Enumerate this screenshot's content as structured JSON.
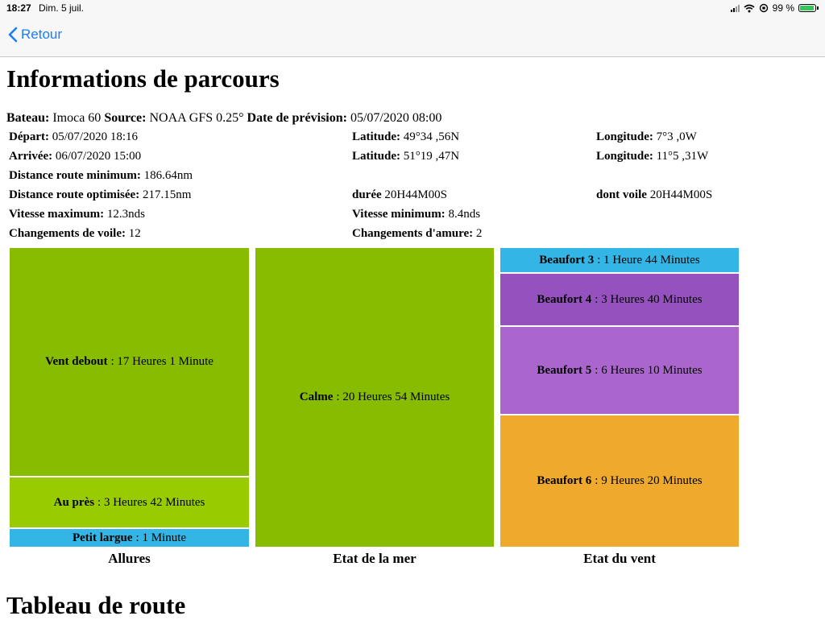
{
  "status": {
    "time": "18:27",
    "date": "Dim. 5 juil.",
    "battery": "99 %"
  },
  "nav": {
    "back_label": "Retour"
  },
  "page": {
    "title": "Informations de parcours",
    "section2_title": "Tableau de route"
  },
  "info": {
    "boat_label": "Bateau:",
    "boat_value": "Imoca 60",
    "source_label": "Source:",
    "source_value": "NOAA GFS 0.25°",
    "forecast_label": "Date de prévision:",
    "forecast_value": "05/07/2020 08:00",
    "depart_label": "Départ:",
    "depart_value": "05/07/2020 18:16",
    "depart_lat_label": "Latitude:",
    "depart_lat_value": "49°34 ,56N",
    "depart_lon_label": "Longitude:",
    "depart_lon_value": "7°3 ,0W",
    "arrival_label": "Arrivée:",
    "arrival_value": "06/07/2020 15:00",
    "arrival_lat_label": "Latitude:",
    "arrival_lat_value": "51°19 ,47N",
    "arrival_lon_label": "Longitude:",
    "arrival_lon_value": "11°5 ,31W",
    "min_distance_label": "Distance route minimum:",
    "min_distance_value": "186.64nm",
    "opt_distance_label": "Distance route optimisée:",
    "opt_distance_value": "217.15nm",
    "duration_label": "durée",
    "duration_value": "20H44M00S",
    "sail_duration_label": "dont voile",
    "sail_duration_value": "20H44M00S",
    "max_speed_label": "Vitesse maximum:",
    "max_speed_value": "12.3nds",
    "min_speed_label": "Vitesse minimum:",
    "min_speed_value": "8.4nds",
    "sail_changes_label": "Changements de voile:",
    "sail_changes_value": "12",
    "tack_changes_label": "Changements d'amure:",
    "tack_changes_value": "2"
  },
  "treemaps": {
    "allures": {
      "caption": "Allures",
      "cells": [
        {
          "name": "Vent debout",
          "text": ": 17 Heures 1 Minute",
          "minutes": 1021,
          "color": "#88bc00"
        },
        {
          "name": "Au près",
          "text": ": 3 Heures 42 Minutes",
          "minutes": 222,
          "color": "#99cc00"
        },
        {
          "name": "Petit largue",
          "text": ": 1 Minute",
          "minutes": 1,
          "color": "#33b5e5"
        }
      ]
    },
    "mer": {
      "caption": "Etat de la mer",
      "cells": [
        {
          "name": "Calme",
          "text": ": 20 Heures 54 Minutes",
          "minutes": 1254,
          "color": "#88bc00"
        }
      ]
    },
    "vent": {
      "caption": "Etat du vent",
      "cells": [
        {
          "name": "Beaufort 3",
          "text": ": 1 Heure 44 Minutes",
          "minutes": 104,
          "color": "#33b5e5"
        },
        {
          "name": "Beaufort 4",
          "text": ": 3 Heures 40 Minutes",
          "minutes": 220,
          "color": "#9552be"
        },
        {
          "name": "Beaufort 5",
          "text": ": 6 Heures 10 Minutes",
          "minutes": 370,
          "color": "#aa66cc"
        },
        {
          "name": "Beaufort 6",
          "text": ": 9 Heures 20 Minutes",
          "minutes": 560,
          "color": "#efa92c"
        }
      ]
    }
  }
}
